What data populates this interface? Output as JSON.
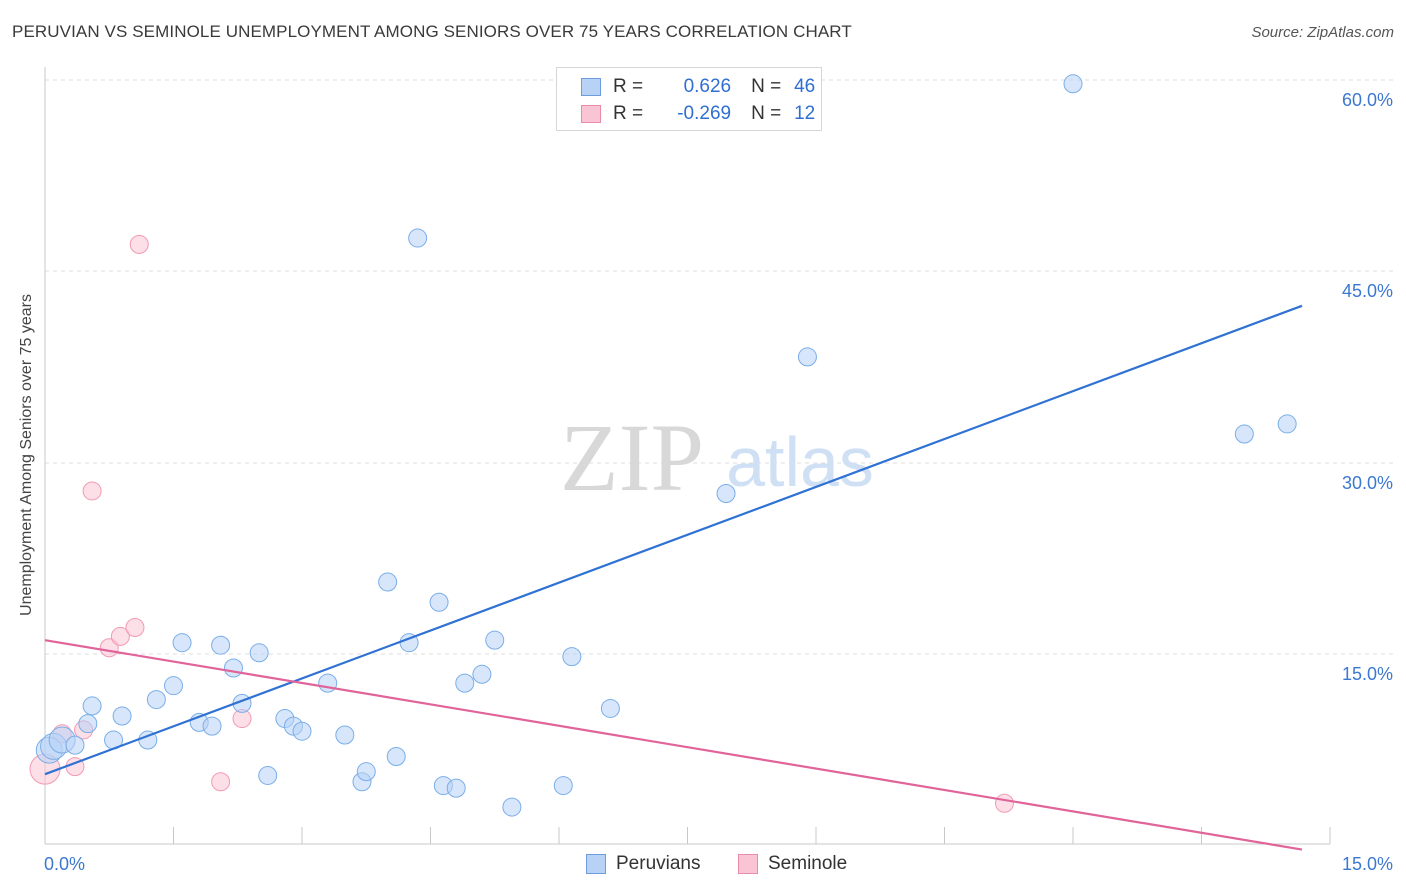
{
  "title": "PERUVIAN VS SEMINOLE UNEMPLOYMENT AMONG SENIORS OVER 75 YEARS CORRELATION CHART",
  "source": "Source: ZipAtlas.com",
  "watermark": {
    "zip": "ZIP",
    "atlas": "atlas"
  },
  "legend": {
    "r_label": "R =",
    "n_label": "N =",
    "rows": [
      {
        "r": "0.626",
        "n": "46"
      },
      {
        "r": "-0.269",
        "n": "12"
      }
    ]
  },
  "chart_data": {
    "type": "scatter",
    "xlabel": "",
    "ylabel": "Unemployment Among Seniors over 75 years",
    "xlim": [
      0,
      15
    ],
    "ylim": [
      0,
      60.0
    ],
    "x_tick_labels": [
      {
        "value": 0,
        "label": "0.0%"
      },
      {
        "value": 15,
        "label": "15.0%"
      }
    ],
    "y_tick_labels": [
      {
        "value": 15,
        "label": "15.0%"
      },
      {
        "value": 30,
        "label": "30.0%"
      },
      {
        "value": 45,
        "label": "45.0%"
      },
      {
        "value": 60,
        "label": "60.0%"
      }
    ],
    "grid": "horizontal dashed",
    "legend_position": "bottom-center",
    "colors": {
      "Peruvians": "#7aaee8",
      "Seminole": "#f29ab4",
      "Peruvians_line": "#2f72d4",
      "Seminole_line": "#e0649a"
    },
    "series": [
      {
        "name": "Peruvians",
        "points": [
          [
            0.05,
            7.5
          ],
          [
            0.1,
            7.8
          ],
          [
            0.2,
            8.3
          ],
          [
            0.35,
            7.9
          ],
          [
            0.5,
            9.6
          ],
          [
            0.55,
            11.0
          ],
          [
            0.8,
            8.3
          ],
          [
            0.9,
            10.2
          ],
          [
            1.2,
            8.3
          ],
          [
            1.3,
            11.5
          ],
          [
            1.5,
            12.6
          ],
          [
            1.6,
            16.0
          ],
          [
            1.8,
            9.7
          ],
          [
            1.95,
            9.4
          ],
          [
            2.05,
            15.8
          ],
          [
            2.2,
            14.0
          ],
          [
            2.3,
            11.2
          ],
          [
            2.5,
            15.2
          ],
          [
            2.6,
            5.5
          ],
          [
            2.8,
            10.0
          ],
          [
            2.9,
            9.4
          ],
          [
            3.0,
            9.0
          ],
          [
            3.3,
            12.8
          ],
          [
            3.5,
            8.7
          ],
          [
            3.7,
            5.0
          ],
          [
            3.75,
            5.8
          ],
          [
            4.0,
            20.8
          ],
          [
            4.1,
            7.0
          ],
          [
            4.25,
            16.0
          ],
          [
            4.35,
            48.0
          ],
          [
            4.6,
            19.2
          ],
          [
            4.65,
            4.7
          ],
          [
            4.8,
            4.5
          ],
          [
            4.9,
            12.8
          ],
          [
            5.1,
            13.5
          ],
          [
            5.25,
            16.2
          ],
          [
            5.45,
            3.0
          ],
          [
            6.05,
            4.7
          ],
          [
            6.15,
            14.9
          ],
          [
            6.6,
            10.8
          ],
          [
            6.9,
            59.9
          ],
          [
            7.95,
            27.8
          ],
          [
            8.9,
            38.6
          ],
          [
            12.0,
            60.2
          ],
          [
            14.0,
            32.5
          ],
          [
            14.5,
            33.3
          ]
        ]
      },
      {
        "name": "Seminole",
        "points": [
          [
            0.0,
            6.0
          ],
          [
            0.2,
            8.8
          ],
          [
            0.35,
            6.2
          ],
          [
            0.45,
            9.1
          ],
          [
            0.55,
            28.0
          ],
          [
            0.75,
            15.6
          ],
          [
            0.88,
            16.5
          ],
          [
            1.05,
            17.2
          ],
          [
            1.1,
            47.5
          ],
          [
            2.05,
            5.0
          ],
          [
            2.3,
            10.0
          ],
          [
            11.2,
            3.3
          ]
        ]
      }
    ],
    "trendlines": [
      {
        "series": "Peruvians",
        "from": [
          0,
          5.6
        ],
        "to": [
          15,
          42.8
        ]
      },
      {
        "series": "Seminole",
        "from": [
          0,
          16.2
        ],
        "to": [
          15,
          -0.2
        ]
      }
    ]
  }
}
